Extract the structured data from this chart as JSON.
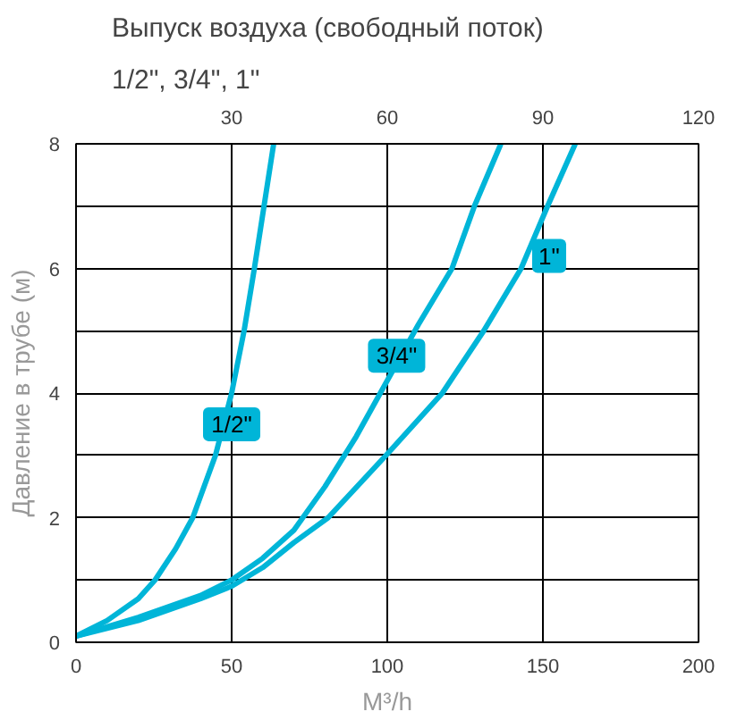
{
  "chart_data": {
    "type": "line",
    "title": "Выпуск воздуха (свободный поток)",
    "subtitle": "1/2\", 3/4\", 1\"",
    "xlabel": "M³/h",
    "ylabel": "Давление в трубе (м)",
    "xlim": [
      0,
      200
    ],
    "xticks": [
      0,
      50,
      100,
      150,
      200
    ],
    "x2lim": [
      0,
      120
    ],
    "x2ticks": [
      30,
      60,
      90,
      120
    ],
    "ylim": [
      0,
      8
    ],
    "yticks": [
      0,
      {
        "value": 1,
        "label": null
      },
      2,
      {
        "value": 3,
        "label": null
      },
      4,
      {
        "value": 5,
        "label": null
      },
      6,
      {
        "value": 7,
        "label": null
      },
      8
    ],
    "grid": true,
    "marker": "none",
    "line_style": "solid",
    "series": [
      {
        "color": "#00b5d8",
        "x": [
          0,
          10,
          20,
          25.4,
          32,
          37.5,
          44.8,
          50,
          54,
          57.3,
          60.4,
          63.5
        ],
        "values": [
          0.1,
          0.35,
          0.7,
          1,
          1.5,
          2,
          3,
          4,
          5,
          6,
          7,
          8
        ]
      },
      {
        "color": "#00b5d8",
        "x": [
          0,
          20,
          40,
          50,
          60,
          70,
          80,
          90,
          100,
          110,
          120.8,
          128,
          136.5
        ],
        "values": [
          0.1,
          0.4,
          0.75,
          1,
          1.35,
          1.8,
          2.5,
          3.3,
          4.2,
          5.1,
          6,
          7,
          8
        ]
      },
      {
        "color": "#00b5d8",
        "x": [
          0,
          20,
          40,
          50,
          60,
          70,
          81,
          99.6,
          117.7,
          131,
          143,
          151.5,
          160.4
        ],
        "values": [
          0.1,
          0.35,
          0.7,
          0.9,
          1.2,
          1.6,
          2,
          3,
          4,
          5,
          6,
          7,
          8
        ]
      }
    ],
    "annotations": [
      {
        "text": "1/2\"",
        "x": 50,
        "y": 3.5
      },
      {
        "text": "3/4\"",
        "x": 103,
        "y": 4.6
      },
      {
        "text": "1\"",
        "x": 152,
        "y": 6.2
      }
    ]
  }
}
